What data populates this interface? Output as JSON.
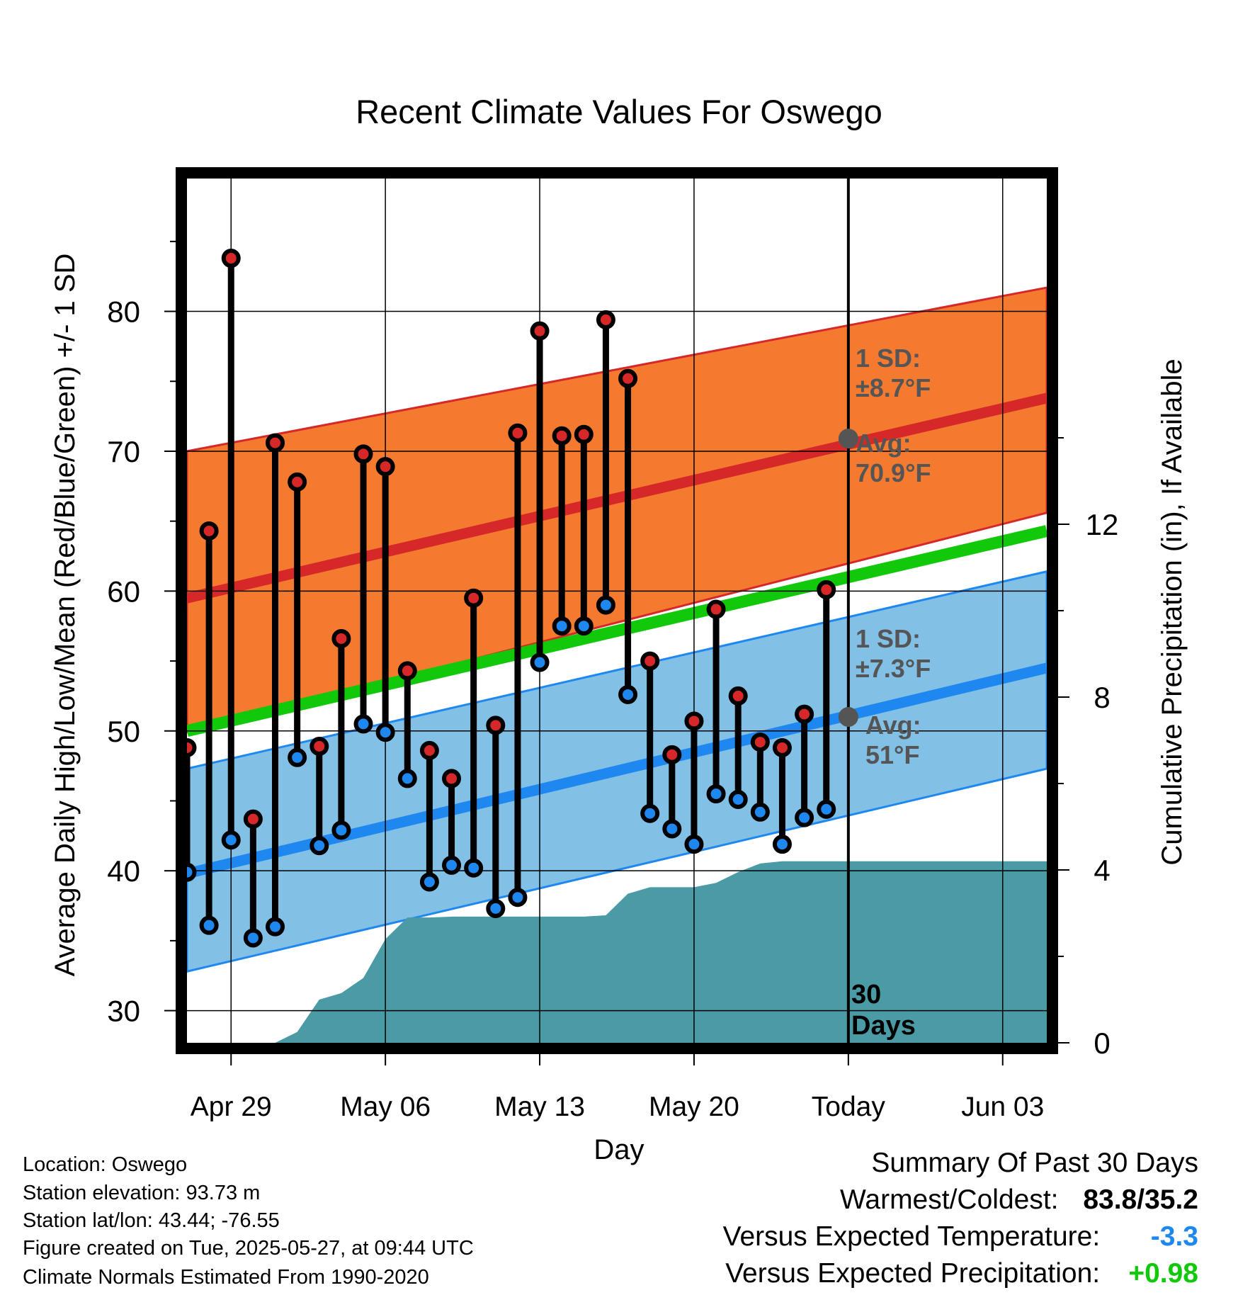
{
  "chart_data": {
    "type": "line",
    "title": "Recent Climate Values For Oswego",
    "xlabel": "Day",
    "ylabel_left": "Average Daily High/Low/Mean (Red/Blue/Green) +/- 1 SD",
    "ylabel_right": "Cumulative Precipitation (in), If Available",
    "x_ticks": [
      "Apr 29",
      "May 06",
      "May 13",
      "May 20",
      "Today",
      "Jun 03"
    ],
    "xlim": [
      "Apr 27",
      "Jun 05"
    ],
    "ylim_left": [
      27.7,
      89.5
    ],
    "y_ticks_left": [
      30,
      40,
      50,
      60,
      70,
      80
    ],
    "ylim_right": [
      0,
      20
    ],
    "y_ticks_right": [
      0,
      4,
      8,
      12
    ],
    "grid": true,
    "today_marker": {
      "day": "May 27",
      "label": "30\nDays"
    },
    "normal_high": {
      "mean": {
        "start": 59.5,
        "end": 73.8
      },
      "upper": {
        "start": 70.0,
        "end": 81.7
      },
      "lower": {
        "start": 49.9,
        "end": 65.6
      },
      "band_color": "#f47a30",
      "line_color": "#d62828",
      "sd_label": "1 SD:\n±8.7°F",
      "avg_label": "Avg:\n70.9°F",
      "avg_today": 70.9
    },
    "normal_low": {
      "mean": {
        "start": 39.8,
        "end": 54.5
      },
      "upper": {
        "start": 47.3,
        "end": 61.4
      },
      "lower": {
        "start": 32.8,
        "end": 47.3
      },
      "band_color": "#82c0e6",
      "line_color": "#1e88f0",
      "sd_label": "1 SD:\n±7.3°F",
      "avg_label": "Avg:\n51°F",
      "avg_today": 51.0
    },
    "normal_mean": {
      "start": 50.0,
      "end": 64.3,
      "color": "#11c90a"
    },
    "series": [
      {
        "name": "High",
        "color": "#d62828",
        "days": [
          "Apr 27",
          "Apr 28",
          "Apr 29",
          "Apr 30",
          "May 01",
          "May 02",
          "May 03",
          "May 04",
          "May 05",
          "May 06",
          "May 07",
          "May 08",
          "May 09",
          "May 10",
          "May 11",
          "May 12",
          "May 13",
          "May 14",
          "May 15",
          "May 16",
          "May 17",
          "May 18",
          "May 19",
          "May 20",
          "May 21",
          "May 22",
          "May 23",
          "May 24",
          "May 25",
          "May 26"
        ],
        "values": [
          48.8,
          64.3,
          83.8,
          43.7,
          70.6,
          67.8,
          48.9,
          56.6,
          69.8,
          68.9,
          54.3,
          48.6,
          46.6,
          59.5,
          50.4,
          71.3,
          78.6,
          71.1,
          71.2,
          79.4,
          75.2,
          55.0,
          48.3,
          50.7,
          58.7,
          52.5,
          49.2,
          48.8,
          51.2,
          60.1
        ]
      },
      {
        "name": "Low",
        "color": "#1e88f0",
        "days": [
          "Apr 27",
          "Apr 28",
          "Apr 29",
          "Apr 30",
          "May 01",
          "May 02",
          "May 03",
          "May 04",
          "May 05",
          "May 06",
          "May 07",
          "May 08",
          "May 09",
          "May 10",
          "May 11",
          "May 12",
          "May 13",
          "May 14",
          "May 15",
          "May 16",
          "May 17",
          "May 18",
          "May 19",
          "May 20",
          "May 21",
          "May 22",
          "May 23",
          "May 24",
          "May 25",
          "May 26"
        ],
        "values": [
          39.9,
          36.1,
          42.2,
          35.2,
          36.0,
          48.1,
          41.8,
          42.9,
          50.5,
          49.9,
          46.6,
          39.2,
          40.4,
          40.2,
          37.3,
          38.1,
          54.9,
          57.5,
          57.5,
          59.0,
          52.6,
          44.1,
          43.0,
          41.9,
          45.5,
          45.1,
          44.2,
          41.9,
          43.8,
          44.4
        ]
      }
    ],
    "precipitation": {
      "name": "Cumulative Precipitation",
      "color": "#4a9ba5",
      "days": [
        "Apr 27",
        "Apr 28",
        "Apr 29",
        "Apr 30",
        "May 01",
        "May 02",
        "May 03",
        "May 04",
        "May 05",
        "May 06",
        "May 07",
        "May 08",
        "May 09",
        "May 10",
        "May 11",
        "May 12",
        "May 13",
        "May 14",
        "May 15",
        "May 16",
        "May 17",
        "May 18",
        "May 19",
        "May 20",
        "May 21",
        "May 22",
        "May 23",
        "May 24",
        "May 25",
        "May 26",
        "Jun 05"
      ],
      "values": [
        0,
        0,
        0,
        0,
        0,
        0.25,
        1.0,
        1.15,
        1.5,
        2.4,
        2.9,
        2.9,
        2.92,
        2.92,
        2.92,
        2.92,
        2.92,
        2.92,
        2.92,
        2.95,
        3.45,
        3.6,
        3.6,
        3.6,
        3.7,
        3.95,
        4.15,
        4.2,
        4.2,
        4.2,
        4.2
      ]
    }
  },
  "info": {
    "location": "Location: Oswego",
    "elevation": "Station elevation: 93.73 m",
    "latlon": "Station lat/lon: 43.44; -76.55",
    "created": "Figure created on Tue, 2025-05-27, at 09:44 UTC",
    "normals": "Climate Normals Estimated From 1990-2020"
  },
  "summary": {
    "title": "Summary Of Past 30 Days",
    "warmest_label": "Warmest/Coldest:",
    "warmest_value": "83.8/35.2",
    "temp_label": "Versus Expected Temperature:",
    "temp_value": "-3.3",
    "temp_color": "#1e88f0",
    "precip_label": "Versus Expected Precipitation:",
    "precip_value": "+0.98",
    "precip_color": "#11c90a"
  }
}
